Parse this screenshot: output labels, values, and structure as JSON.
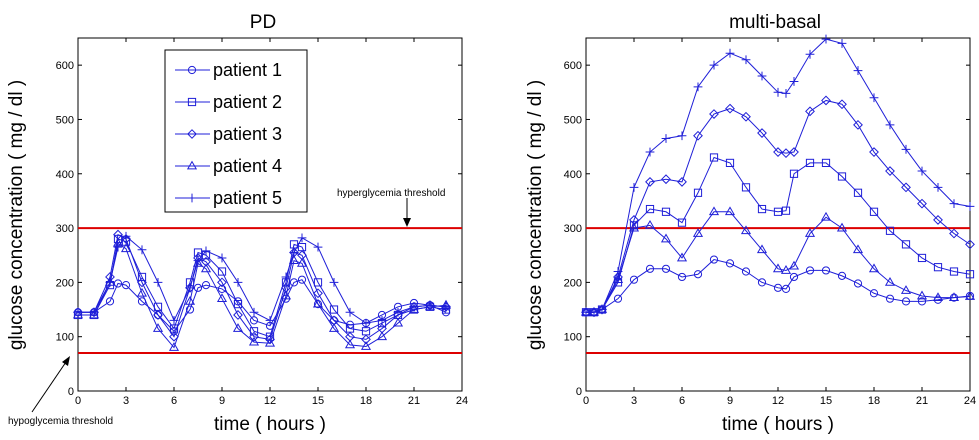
{
  "chart_data": [
    {
      "type": "line",
      "title": "PD",
      "xlabel": "time ( hours )",
      "ylabel": "glucose concentration ( mg / dl )",
      "xlim": [
        0,
        24
      ],
      "ylim": [
        0,
        650
      ],
      "xticks": [
        0,
        3,
        6,
        9,
        12,
        15,
        18,
        21,
        24
      ],
      "yticks": [
        0,
        100,
        200,
        300,
        400,
        500,
        600
      ],
      "legend": "top-left",
      "grid": false,
      "thresholds": [
        {
          "value": 300,
          "label": "hyperglycemia threshold",
          "color": "#dd0000"
        },
        {
          "value": 70,
          "label": "hypoglycemia threshold",
          "color": "#dd0000"
        }
      ],
      "x": [
        0,
        1,
        2,
        2.5,
        3,
        4,
        5,
        6,
        7,
        7.5,
        8,
        9,
        10,
        11,
        12,
        13,
        13.5,
        14,
        15,
        16,
        17,
        18,
        19,
        20,
        21,
        22,
        23
      ],
      "series": [
        {
          "name": "patient 1",
          "marker": "circle",
          "color": "#1f1fd8",
          "values": [
            145,
            145,
            165,
            198,
            195,
            165,
            140,
            110,
            150,
            190,
            195,
            188,
            165,
            130,
            120,
            170,
            200,
            205,
            160,
            130,
            122,
            125,
            140,
            155,
            162,
            158,
            145
          ]
        },
        {
          "name": "patient 2",
          "marker": "square",
          "color": "#1f1fd8",
          "values": [
            140,
            140,
            195,
            280,
            275,
            210,
            155,
            115,
            200,
            255,
            250,
            220,
            160,
            110,
            100,
            200,
            270,
            265,
            200,
            150,
            115,
            110,
            125,
            140,
            150,
            155,
            150
          ]
        },
        {
          "name": "patient 3",
          "marker": "diamond",
          "color": "#1f1fd8",
          "values": [
            145,
            145,
            210,
            288,
            280,
            200,
            140,
            100,
            190,
            245,
            238,
            200,
            140,
            100,
            95,
            190,
            255,
            250,
            180,
            130,
            100,
            95,
            115,
            140,
            155,
            158,
            155
          ]
        },
        {
          "name": "patient 4",
          "marker": "triangle",
          "color": "#1f1fd8",
          "values": [
            140,
            140,
            200,
            272,
            262,
            180,
            115,
            80,
            165,
            235,
            225,
            170,
            115,
            90,
            88,
            175,
            240,
            235,
            160,
            115,
            85,
            82,
            100,
            125,
            150,
            155,
            158
          ]
        },
        {
          "name": "patient 5",
          "marker": "plus",
          "color": "#1f1fd8",
          "values": [
            145,
            145,
            200,
            265,
            285,
            260,
            200,
            130,
            190,
            240,
            258,
            245,
            200,
            145,
            130,
            210,
            255,
            282,
            265,
            200,
            145,
            125,
            130,
            145,
            155,
            158,
            155
          ]
        }
      ]
    },
    {
      "type": "line",
      "title": "multi-basal",
      "xlabel": "time ( hours )",
      "ylabel": "glucose concentration ( mg / dl )",
      "xlim": [
        0,
        24
      ],
      "ylim": [
        0,
        650
      ],
      "xticks": [
        0,
        3,
        6,
        9,
        12,
        15,
        18,
        21,
        24
      ],
      "yticks": [
        0,
        100,
        200,
        300,
        400,
        500,
        600
      ],
      "grid": false,
      "thresholds": [
        {
          "value": 300,
          "label": "",
          "color": "#dd0000"
        },
        {
          "value": 70,
          "label": "",
          "color": "#dd0000"
        }
      ],
      "x": [
        0,
        0.5,
        1,
        2,
        3,
        4,
        5,
        6,
        7,
        8,
        9,
        10,
        11,
        12,
        12.5,
        13,
        14,
        15,
        16,
        17,
        18,
        19,
        20,
        21,
        22,
        23,
        24
      ],
      "series": [
        {
          "name": "patient 1",
          "marker": "circle",
          "color": "#1f1fd8",
          "values": [
            145,
            145,
            150,
            170,
            205,
            225,
            225,
            210,
            215,
            242,
            235,
            220,
            200,
            190,
            188,
            210,
            222,
            222,
            212,
            198,
            180,
            170,
            165,
            165,
            168,
            172,
            175
          ]
        },
        {
          "name": "patient 2",
          "marker": "square",
          "color": "#1f1fd8",
          "values": [
            145,
            145,
            150,
            200,
            305,
            335,
            330,
            310,
            365,
            430,
            420,
            375,
            335,
            330,
            332,
            400,
            420,
            420,
            395,
            365,
            330,
            295,
            270,
            245,
            228,
            220,
            215
          ]
        },
        {
          "name": "patient 3",
          "marker": "diamond",
          "color": "#1f1fd8",
          "values": [
            145,
            145,
            150,
            210,
            315,
            385,
            390,
            385,
            470,
            510,
            520,
            505,
            475,
            440,
            438,
            440,
            515,
            535,
            528,
            490,
            440,
            405,
            375,
            345,
            315,
            290,
            270
          ]
        },
        {
          "name": "patient 4",
          "marker": "triangle",
          "color": "#1f1fd8",
          "values": [
            145,
            145,
            150,
            205,
            300,
            305,
            280,
            245,
            290,
            330,
            330,
            295,
            260,
            225,
            222,
            230,
            290,
            320,
            300,
            260,
            225,
            200,
            185,
            175,
            172,
            172,
            174
          ]
        },
        {
          "name": "patient 5",
          "marker": "plus",
          "color": "#1f1fd8",
          "values": [
            145,
            145,
            150,
            220,
            375,
            440,
            465,
            470,
            560,
            600,
            622,
            610,
            580,
            550,
            548,
            570,
            620,
            648,
            640,
            590,
            540,
            490,
            445,
            405,
            375,
            345,
            340
          ]
        }
      ]
    }
  ]
}
